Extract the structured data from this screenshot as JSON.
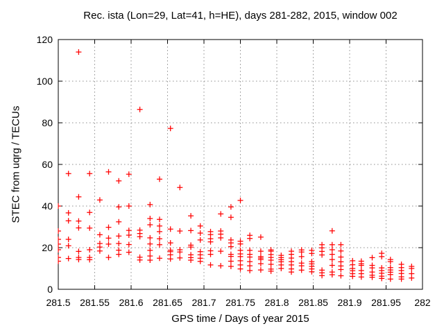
{
  "chart_data": {
    "type": "scatter",
    "title": "Rec. ista (Lon=29, Lat=41, h=HE), days 281-282, 2015, window 002",
    "xlabel": "GPS time / Days of year 2015",
    "ylabel": "STEC from uqrg / TECUs",
    "xlim": [
      281.5,
      282
    ],
    "ylim": [
      0,
      120
    ],
    "xticks": {
      "values": [
        281.5,
        281.55,
        281.6,
        281.65,
        281.7,
        281.75,
        281.8,
        281.85,
        281.9,
        281.95,
        282
      ],
      "labels": [
        "281.5",
        "281.55",
        "281.6",
        "281.65",
        "281.7",
        "281.75",
        "281.8",
        "281.85",
        "281.9",
        "281.95",
        "282"
      ]
    },
    "yticks": {
      "values": [
        0,
        20,
        40,
        60,
        80,
        100,
        120
      ],
      "labels": [
        "0",
        "20",
        "40",
        "60",
        "80",
        "100",
        "120"
      ]
    },
    "grid": true,
    "grid_style": "dotted",
    "grid_color": "#8c8c8c",
    "axis_color": "#000000",
    "legend": "none",
    "series": [
      {
        "name": "STEC from uqrg",
        "marker": "plus",
        "color": "#ff0000",
        "points": [
          [
            281.5,
            40
          ],
          [
            281.5,
            28
          ],
          [
            281.5,
            24
          ],
          [
            281.5,
            21.7
          ],
          [
            281.5,
            19
          ],
          [
            281.5,
            15.3
          ],
          [
            281.5,
            13.5
          ],
          [
            281.514,
            55.6
          ],
          [
            281.514,
            36.7
          ],
          [
            281.514,
            32.9
          ],
          [
            281.514,
            24
          ],
          [
            281.514,
            20.9
          ],
          [
            281.514,
            14.8
          ],
          [
            281.528,
            114
          ],
          [
            281.528,
            44.4
          ],
          [
            281.528,
            32.8
          ],
          [
            281.528,
            29.5
          ],
          [
            281.528,
            18.2
          ],
          [
            281.528,
            15.3
          ],
          [
            281.528,
            14.3
          ],
          [
            281.543,
            55.6
          ],
          [
            281.543,
            36.9
          ],
          [
            281.543,
            29.4
          ],
          [
            281.543,
            19
          ],
          [
            281.543,
            15.3
          ],
          [
            281.543,
            14.2
          ],
          [
            281.557,
            42.9
          ],
          [
            281.557,
            26.2
          ],
          [
            281.557,
            22
          ],
          [
            281.557,
            20.3
          ],
          [
            281.557,
            18.4
          ],
          [
            281.569,
            56.4
          ],
          [
            281.569,
            29.8
          ],
          [
            281.569,
            24.6
          ],
          [
            281.569,
            21.7
          ],
          [
            281.569,
            15.3
          ],
          [
            281.583,
            52.1
          ],
          [
            281.583,
            39.6
          ],
          [
            281.583,
            32.4
          ],
          [
            281.583,
            25.6
          ],
          [
            281.583,
            22
          ],
          [
            281.583,
            18.8
          ],
          [
            281.583,
            16.8
          ],
          [
            281.597,
            55.3
          ],
          [
            281.597,
            40
          ],
          [
            281.597,
            28.3
          ],
          [
            281.597,
            26
          ],
          [
            281.597,
            21.5
          ],
          [
            281.597,
            17.8
          ],
          [
            281.612,
            86.4
          ],
          [
            281.612,
            28.4
          ],
          [
            281.612,
            26.8
          ],
          [
            281.612,
            25.3
          ],
          [
            281.612,
            15.4
          ],
          [
            281.612,
            14.1
          ],
          [
            281.626,
            40.7
          ],
          [
            281.626,
            34
          ],
          [
            281.626,
            31
          ],
          [
            281.626,
            24.7
          ],
          [
            281.626,
            21.8
          ],
          [
            281.626,
            18.7
          ],
          [
            281.626,
            16
          ],
          [
            281.626,
            14
          ],
          [
            281.639,
            52.9
          ],
          [
            281.639,
            33.6
          ],
          [
            281.639,
            30.4
          ],
          [
            281.639,
            27.7
          ],
          [
            281.639,
            24.3
          ],
          [
            281.639,
            21.4
          ],
          [
            281.639,
            14.9
          ],
          [
            281.654,
            77.3
          ],
          [
            281.654,
            28.9
          ],
          [
            281.654,
            22.3
          ],
          [
            281.654,
            18.8
          ],
          [
            281.654,
            18.1
          ],
          [
            281.654,
            16.6
          ],
          [
            281.654,
            14.6
          ],
          [
            281.667,
            48.9
          ],
          [
            281.667,
            28
          ],
          [
            281.667,
            19
          ],
          [
            281.667,
            17.9
          ],
          [
            281.667,
            15.1
          ],
          [
            281.682,
            35.3
          ],
          [
            281.682,
            28.2
          ],
          [
            281.682,
            21.2
          ],
          [
            281.682,
            20.3
          ],
          [
            281.682,
            16.6
          ],
          [
            281.682,
            15.2
          ],
          [
            281.682,
            14
          ],
          [
            281.695,
            30.4
          ],
          [
            281.695,
            27
          ],
          [
            281.695,
            23.7
          ],
          [
            281.695,
            18.1
          ],
          [
            281.695,
            16.6
          ],
          [
            281.695,
            14.9
          ],
          [
            281.695,
            13.4
          ],
          [
            281.709,
            27.7
          ],
          [
            281.709,
            26.3
          ],
          [
            281.709,
            24.3
          ],
          [
            281.709,
            22.8
          ],
          [
            281.709,
            18.5
          ],
          [
            281.709,
            16.8
          ],
          [
            281.709,
            11.7
          ],
          [
            281.723,
            36.2
          ],
          [
            281.723,
            28
          ],
          [
            281.723,
            26.5
          ],
          [
            281.723,
            24.7
          ],
          [
            281.723,
            18.3
          ],
          [
            281.723,
            11.3
          ],
          [
            281.737,
            39.6
          ],
          [
            281.737,
            34.6
          ],
          [
            281.737,
            23.7
          ],
          [
            281.737,
            22.3
          ],
          [
            281.737,
            20.5
          ],
          [
            281.737,
            16.8
          ],
          [
            281.737,
            15.8
          ],
          [
            281.737,
            13.5
          ],
          [
            281.737,
            11
          ],
          [
            281.75,
            42.7
          ],
          [
            281.75,
            23.1
          ],
          [
            281.75,
            21.8
          ],
          [
            281.75,
            18.7
          ],
          [
            281.75,
            17
          ],
          [
            281.75,
            15.7
          ],
          [
            281.75,
            13.7
          ],
          [
            281.75,
            11.7
          ],
          [
            281.75,
            9.8
          ],
          [
            281.763,
            25.9
          ],
          [
            281.763,
            24.4
          ],
          [
            281.763,
            18.7
          ],
          [
            281.763,
            16.8
          ],
          [
            281.763,
            15.5
          ],
          [
            281.763,
            13.3
          ],
          [
            281.763,
            11.3
          ],
          [
            281.763,
            9
          ],
          [
            281.778,
            25.1
          ],
          [
            281.778,
            18.3
          ],
          [
            281.778,
            15.7
          ],
          [
            281.778,
            15
          ],
          [
            281.778,
            14.3
          ],
          [
            281.778,
            12.3
          ],
          [
            281.778,
            9.3
          ],
          [
            281.792,
            18.9
          ],
          [
            281.792,
            18.3
          ],
          [
            281.792,
            16.7
          ],
          [
            281.792,
            15.3
          ],
          [
            281.792,
            14
          ],
          [
            281.792,
            12
          ],
          [
            281.792,
            9.7
          ],
          [
            281.792,
            8.7
          ],
          [
            281.806,
            16.3
          ],
          [
            281.806,
            15.2
          ],
          [
            281.806,
            14.2
          ],
          [
            281.806,
            13.2
          ],
          [
            281.806,
            11.7
          ],
          [
            281.806,
            10
          ],
          [
            281.82,
            18.3
          ],
          [
            281.82,
            16.8
          ],
          [
            281.82,
            15
          ],
          [
            281.82,
            13.3
          ],
          [
            281.82,
            11.7
          ],
          [
            281.82,
            9.8
          ],
          [
            281.82,
            8.3
          ],
          [
            281.834,
            18.9
          ],
          [
            281.834,
            17.9
          ],
          [
            281.834,
            15.7
          ],
          [
            281.834,
            12.6
          ],
          [
            281.834,
            11.3
          ],
          [
            281.834,
            9.2
          ],
          [
            281.848,
            18.7
          ],
          [
            281.848,
            17.2
          ],
          [
            281.848,
            13.3
          ],
          [
            281.848,
            12.2
          ],
          [
            281.848,
            11
          ],
          [
            281.848,
            9.8
          ],
          [
            281.848,
            8.4
          ],
          [
            281.862,
            21.4
          ],
          [
            281.862,
            19.9
          ],
          [
            281.862,
            18.2
          ],
          [
            281.862,
            16.5
          ],
          [
            281.862,
            9.2
          ],
          [
            281.862,
            7.9
          ],
          [
            281.862,
            6.6
          ],
          [
            281.876,
            28.1
          ],
          [
            281.876,
            21.4
          ],
          [
            281.876,
            19
          ],
          [
            281.876,
            16.8
          ],
          [
            281.876,
            14.3
          ],
          [
            281.876,
            11.5
          ],
          [
            281.876,
            8.3
          ],
          [
            281.876,
            7
          ],
          [
            281.888,
            21.4
          ],
          [
            281.888,
            18.4
          ],
          [
            281.888,
            15.5
          ],
          [
            281.888,
            13.2
          ],
          [
            281.888,
            11.2
          ],
          [
            281.888,
            9.5
          ],
          [
            281.888,
            6.5
          ],
          [
            281.904,
            13.7
          ],
          [
            281.904,
            11.8
          ],
          [
            281.904,
            10
          ],
          [
            281.904,
            8.9
          ],
          [
            281.904,
            7.5
          ],
          [
            281.904,
            6.2
          ],
          [
            281.916,
            13.5
          ],
          [
            281.916,
            12.3
          ],
          [
            281.916,
            11.5
          ],
          [
            281.916,
            9
          ],
          [
            281.916,
            7.5
          ],
          [
            281.916,
            5.9
          ],
          [
            281.931,
            15.2
          ],
          [
            281.931,
            11.5
          ],
          [
            281.931,
            10.3
          ],
          [
            281.931,
            8.3
          ],
          [
            281.931,
            6.8
          ],
          [
            281.931,
            5.8
          ],
          [
            281.944,
            17.3
          ],
          [
            281.944,
            15.7
          ],
          [
            281.944,
            10.3
          ],
          [
            281.944,
            9
          ],
          [
            281.944,
            7.7
          ],
          [
            281.944,
            6.3
          ],
          [
            281.944,
            5.2
          ],
          [
            281.956,
            14.3
          ],
          [
            281.956,
            13.3
          ],
          [
            281.956,
            10.4
          ],
          [
            281.956,
            9.3
          ],
          [
            281.956,
            8.2
          ],
          [
            281.956,
            7.1
          ],
          [
            281.956,
            4.9
          ],
          [
            281.971,
            12
          ],
          [
            281.971,
            10.4
          ],
          [
            281.971,
            9
          ],
          [
            281.971,
            7.6
          ],
          [
            281.971,
            6
          ],
          [
            281.971,
            4.9
          ],
          [
            281.985,
            11
          ],
          [
            281.985,
            10
          ],
          [
            281.985,
            7.5
          ],
          [
            281.985,
            5.4
          ]
        ]
      }
    ]
  }
}
